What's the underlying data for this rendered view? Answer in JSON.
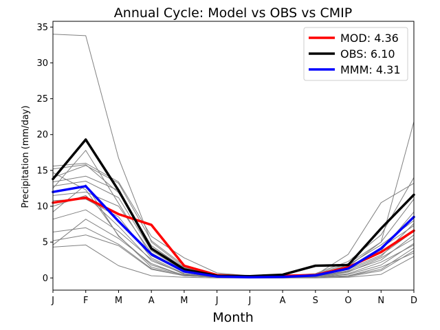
{
  "chart_data": {
    "type": "line",
    "title": "Annual Cycle: Model vs OBS vs CMIP",
    "xlabel": "Month",
    "ylabel": "Precipitation (mm/day)",
    "categories": [
      "J",
      "F",
      "M",
      "A",
      "M",
      "J",
      "J",
      "A",
      "S",
      "O",
      "N",
      "D"
    ],
    "ylim": [
      -1.7,
      35.8
    ],
    "yticks": [
      0,
      5,
      10,
      15,
      20,
      25,
      30,
      35
    ],
    "grid": false,
    "legend_position": "top-right",
    "series": [
      {
        "name": "MOD: 4.36",
        "color": "#ff0000",
        "values": [
          10.5,
          11.2,
          8.9,
          7.4,
          1.7,
          0.4,
          0.2,
          0.3,
          0.4,
          1.5,
          3.6,
          6.6
        ]
      },
      {
        "name": "OBS: 6.10",
        "color": "#000000",
        "values": [
          13.8,
          19.3,
          12.2,
          4.1,
          1.2,
          0.3,
          0.25,
          0.45,
          1.7,
          1.8,
          6.9,
          11.6
        ]
      },
      {
        "name": "MMM: 4.31",
        "color": "#0000ff",
        "values": [
          12.0,
          12.8,
          7.9,
          3.3,
          0.9,
          0.2,
          0.1,
          0.15,
          0.35,
          1.3,
          4.1,
          8.5
        ]
      }
    ],
    "ensemble_members": {
      "color": "#808080",
      "members": [
        [
          34.0,
          33.8,
          16.7,
          5.0,
          1.5,
          0.5,
          0.2,
          0.2,
          0.5,
          2.0,
          5.0,
          11.0
        ],
        [
          15.6,
          16.0,
          13.4,
          5.8,
          2.8,
          0.7,
          0.3,
          0.3,
          0.6,
          2.3,
          6.0,
          14.0
        ],
        [
          15.2,
          15.8,
          11.9,
          4.5,
          1.4,
          0.4,
          0.2,
          0.3,
          0.5,
          1.6,
          5.0,
          21.8
        ],
        [
          14.7,
          12.3,
          5.9,
          1.5,
          0.4,
          0.2,
          0.1,
          0.1,
          0.4,
          3.3,
          10.5,
          13.2
        ],
        [
          14.0,
          15.7,
          13.2,
          5.2,
          1.7,
          0.3,
          0.1,
          0.1,
          0.3,
          1.2,
          3.8,
          9.2
        ],
        [
          13.4,
          14.2,
          12.2,
          4.5,
          1.3,
          0.3,
          0.1,
          0.2,
          0.4,
          1.8,
          4.6,
          8.0
        ],
        [
          12.8,
          13.5,
          11.2,
          3.8,
          1.0,
          0.2,
          0.1,
          0.1,
          0.3,
          1.4,
          4.2,
          7.3
        ],
        [
          12.5,
          17.8,
          10.4,
          3.1,
          0.8,
          0.2,
          0.1,
          0.1,
          0.2,
          1.0,
          3.0,
          7.6
        ],
        [
          11.5,
          12.0,
          10.0,
          3.5,
          0.9,
          0.2,
          0.1,
          0.1,
          0.3,
          1.2,
          3.2,
          6.5
        ],
        [
          10.8,
          11.0,
          8.5,
          2.8,
          0.6,
          0.1,
          0.1,
          0.1,
          0.2,
          0.9,
          2.5,
          6.0
        ],
        [
          10.0,
          11.5,
          7.2,
          2.4,
          0.6,
          0.1,
          0.1,
          0.1,
          0.2,
          0.8,
          2.8,
          5.5
        ],
        [
          9.2,
          13.0,
          5.8,
          1.8,
          0.4,
          0.1,
          0.1,
          0.1,
          0.1,
          0.5,
          1.8,
          4.8
        ],
        [
          8.2,
          9.5,
          6.5,
          2.6,
          0.5,
          0.1,
          0.1,
          0.1,
          0.2,
          0.6,
          2.2,
          4.6
        ],
        [
          6.4,
          7.0,
          4.7,
          1.3,
          0.3,
          0.1,
          0.1,
          0.1,
          0.1,
          0.3,
          1.2,
          4.2
        ],
        [
          5.2,
          6.0,
          4.5,
          1.2,
          0.3,
          0.1,
          0.0,
          0.0,
          0.1,
          0.2,
          1.0,
          3.8
        ],
        [
          4.6,
          8.2,
          5.5,
          2.0,
          0.3,
          0.1,
          0.0,
          0.0,
          0.1,
          0.3,
          1.5,
          3.5
        ],
        [
          4.3,
          4.6,
          1.7,
          0.3,
          0.1,
          0.0,
          0.0,
          0.0,
          0.0,
          0.1,
          0.5,
          3.0
        ]
      ]
    }
  }
}
